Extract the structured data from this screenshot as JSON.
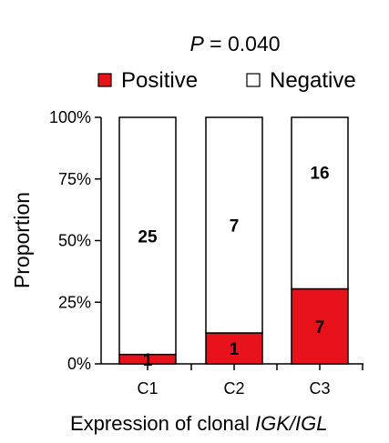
{
  "chart_data": {
    "type": "bar",
    "stacked": true,
    "title_p": "P",
    "title_value": " = 0.040",
    "ylabel": "Proportion",
    "xlabel_prefix": "Expression of clonal ",
    "xlabel_italic": "IGK/IGL",
    "ylim": [
      0,
      100
    ],
    "yticks": [
      "0%",
      "25%",
      "50%",
      "75%",
      "100%"
    ],
    "ytick_values": [
      0,
      25,
      50,
      75,
      100
    ],
    "categories": [
      "C1",
      "C2",
      "C3"
    ],
    "series": [
      {
        "name": "Positive",
        "counts": [
          1,
          1,
          7
        ],
        "values": [
          3.8,
          12.5,
          30.4
        ],
        "color": "#e8121a"
      },
      {
        "name": "Negative",
        "counts": [
          25,
          7,
          16
        ],
        "values": [
          96.2,
          87.5,
          69.6
        ],
        "color": "#ffffff"
      }
    ],
    "legend_position": "top"
  }
}
